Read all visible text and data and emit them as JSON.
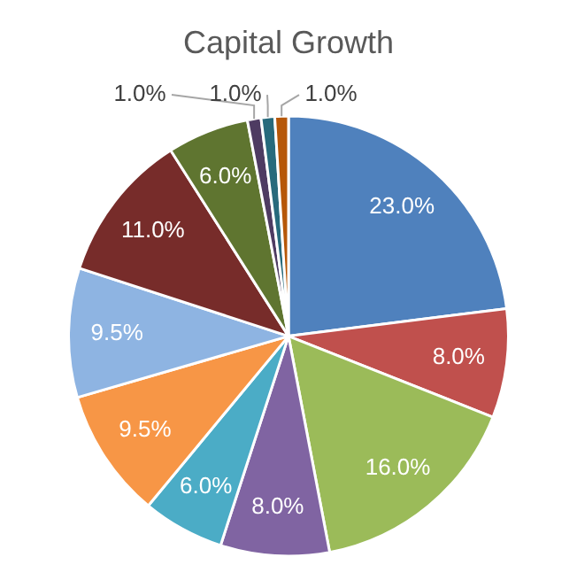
{
  "chart_data": {
    "type": "pie",
    "title": "Capital Growth",
    "categories": [
      null,
      null,
      null,
      null,
      null,
      null,
      null,
      null,
      null,
      null,
      null,
      null
    ],
    "values": [
      23,
      8,
      16,
      8,
      6,
      9.5,
      9.5,
      11,
      6,
      1,
      1,
      1
    ],
    "value_labels": [
      "23.0%",
      "8.0%",
      "16.0%",
      "8.0%",
      "6.0%",
      "9.5%",
      "9.5%",
      "11.0%",
      "6.0%",
      "1.0%",
      "1.0%",
      "1.0%"
    ],
    "colors": [
      "#4f81bd",
      "#c0504d",
      "#9bbb59",
      "#8064a2",
      "#4bacc6",
      "#f79646",
      "#8eb4e2",
      "#772c2a",
      "#5f7530",
      "#4e3b62",
      "#276a7c",
      "#b65708"
    ],
    "legend": false
  }
}
